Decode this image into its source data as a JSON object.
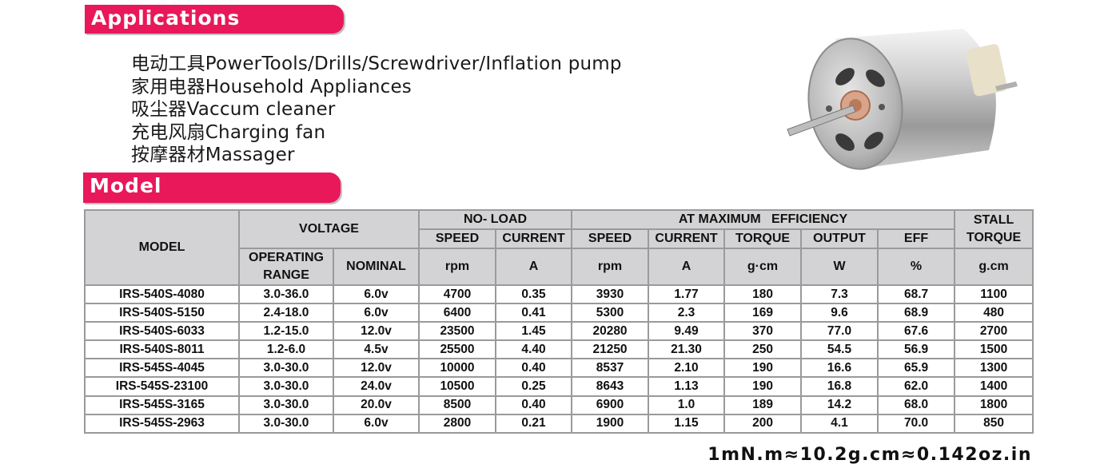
{
  "applications": {
    "heading": "Applications",
    "items": [
      "电动工具PowerTools/Drills/Screwdriver/Inflation pump",
      "家用电器Household Appliances",
      "吸尘器Vaccum cleaner",
      "充电风扇Charging fan",
      "按摩器材Massager"
    ]
  },
  "model_section": {
    "heading": "Model"
  },
  "table": {
    "headers": {
      "model": "MODEL",
      "voltage": "VOLTAGE",
      "no_load": "NO- LOAD",
      "max_eff": "AT MAXIMUM   EFFICIENCY",
      "stall": "STALL TORQUE",
      "speed": "SPEED",
      "current": "CURRENT",
      "torque": "TORQUE",
      "output": "OUTPUT",
      "eff": "EFF",
      "operating_range": "OPERATING RANGE",
      "nominal": "NOMINAL",
      "unit_rpm": "rpm",
      "unit_a": "A",
      "unit_gcm": "g·cm",
      "unit_w": "W",
      "unit_pct": "%",
      "unit_stall": "g.cm"
    },
    "rows": [
      [
        "IRS-540S-4080",
        "3.0-36.0",
        "6.0v",
        "4700",
        "0.35",
        "3930",
        "1.77",
        "180",
        "7.3",
        "68.7",
        "1100"
      ],
      [
        "IRS-540S-5150",
        "2.4-18.0",
        "6.0v",
        "6400",
        "0.41",
        "5300",
        "2.3",
        "169",
        "9.6",
        "68.9",
        "480"
      ],
      [
        "IRS-540S-6033",
        "1.2-15.0",
        "12.0v",
        "23500",
        "1.45",
        "20280",
        "9.49",
        "370",
        "77.0",
        "67.6",
        "2700"
      ],
      [
        "IRS-540S-8011",
        "1.2-6.0",
        "4.5v",
        "25500",
        "4.40",
        "21250",
        "21.30",
        "250",
        "54.5",
        "56.9",
        "1500"
      ],
      [
        "IRS-545S-4045",
        "3.0-30.0",
        "12.0v",
        "10000",
        "0.40",
        "8537",
        "2.10",
        "190",
        "16.6",
        "65.9",
        "1300"
      ],
      [
        "IRS-545S-23100",
        "3.0-30.0",
        "24.0v",
        "10500",
        "0.25",
        "8643",
        "1.13",
        "190",
        "16.8",
        "62.0",
        "1400"
      ],
      [
        "IRS-545S-3165",
        "3.0-30.0",
        "20.0v",
        "8500",
        "0.40",
        "6900",
        "1.0",
        "189",
        "14.2",
        "68.0",
        "1800"
      ],
      [
        "IRS-545S-2963",
        "3.0-30.0",
        "6.0v",
        "2800",
        "0.21",
        "1900",
        "1.15",
        "200",
        "4.1",
        "70.0",
        "850"
      ]
    ]
  },
  "conversion_note": "1mN.m≈10.2g.cm≈0.142oz.in",
  "colors": {
    "banner": "#e8185a",
    "header_bg": "#d3d3d5",
    "border": "#9a9a9a"
  }
}
